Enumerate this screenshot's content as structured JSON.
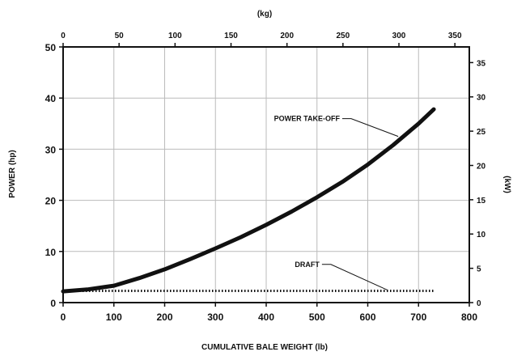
{
  "chart_data": {
    "type": "line",
    "xlabel": "CUMULATIVE BALE WEIGHT (lb)",
    "ylabel": "POWER (hp)",
    "x2label": "(kg)",
    "y2label": "(kW)",
    "xlim": [
      0,
      800
    ],
    "ylim": [
      0,
      50
    ],
    "x2lim": [
      0,
      362.874
    ],
    "y2lim": [
      0,
      37.285
    ],
    "x_ticks": [
      0,
      100,
      200,
      300,
      400,
      500,
      600,
      700,
      800
    ],
    "y_ticks": [
      0,
      10,
      20,
      30,
      40,
      50
    ],
    "x2_ticks": [
      0,
      50,
      100,
      150,
      200,
      250,
      300,
      350
    ],
    "y2_ticks": [
      0,
      5,
      10,
      15,
      20,
      25,
      30,
      35
    ],
    "x_tick_labels": [
      "0",
      "100",
      "200",
      "300",
      "400",
      "500",
      "600",
      "700",
      "800"
    ],
    "y_tick_labels": [
      "0",
      "10",
      "20",
      "30",
      "40",
      "50"
    ],
    "x2_tick_labels": [
      "0",
      "50",
      "100",
      "150",
      "200",
      "250",
      "300",
      "350"
    ],
    "y2_tick_labels": [
      "0",
      "5",
      "10",
      "15",
      "20",
      "25",
      "30",
      "35"
    ],
    "grid": true,
    "series": [
      {
        "name": "POWER TAKE-OFF",
        "style": "solid-thick",
        "x": [
          0,
          50,
          100,
          150,
          200,
          250,
          300,
          350,
          400,
          450,
          500,
          550,
          600,
          650,
          700,
          730
        ],
        "y": [
          2.2,
          2.6,
          3.3,
          4.8,
          6.5,
          8.5,
          10.6,
          12.8,
          15.2,
          17.8,
          20.6,
          23.6,
          27.0,
          30.8,
          35.0,
          37.8
        ]
      },
      {
        "name": "DRAFT",
        "style": "dotted",
        "x": [
          0,
          730
        ],
        "y": [
          2.3,
          2.3
        ]
      }
    ],
    "annotations": [
      {
        "text": "POWER TAKE-OFF",
        "x": 545,
        "y": 35.5,
        "target_x": 660,
        "target_y": 32.5
      },
      {
        "text": "DRAFT",
        "x": 505,
        "y": 7.0,
        "target_x": 640,
        "target_y": 2.4
      }
    ],
    "colors": {
      "line": "#111111",
      "grid": "#bbbbbb",
      "frame": "#111111"
    }
  }
}
